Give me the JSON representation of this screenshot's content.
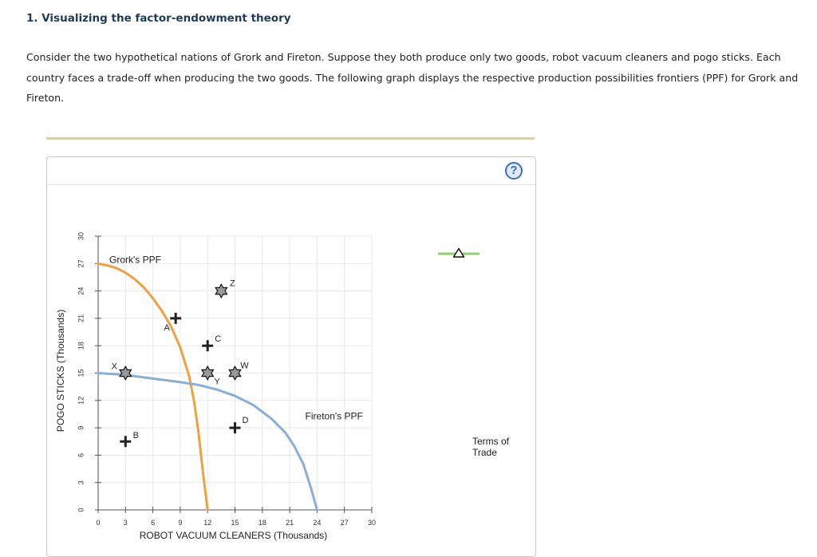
{
  "question": {
    "title": "1. Visualizing the factor-endowment theory",
    "body": "Consider the two hypothetical nations of Grork and Fireton. Suppose they both produce only two goods, robot vacuum cleaners and pogo sticks. Each country faces a trade-off when producing the two goods. The following graph displays the respective production possibilities frontiers (PPF) for Grork and Fireton."
  },
  "help": {
    "label": "?"
  },
  "legend": {
    "terms_of_trade": "Terms of Trade",
    "color": "#8fd16a"
  },
  "chart_data": {
    "type": "line",
    "xlabel": "ROBOT VACUUM CLEANERS (Thousands)",
    "ylabel": "POGO STICKS (Thousands)",
    "xlim": [
      0,
      30
    ],
    "ylim": [
      0,
      30
    ],
    "x_ticks": [
      "0",
      "3",
      "6",
      "9",
      "12",
      "15",
      "18",
      "21",
      "24",
      "27",
      "30"
    ],
    "y_ticks": [
      "0",
      "3",
      "6",
      "9",
      "12",
      "15",
      "18",
      "21",
      "24",
      "27",
      "30"
    ],
    "grid": true,
    "series": [
      {
        "name": "Grork's PPF",
        "color": "#f0a040",
        "points": [
          [
            0,
            27
          ],
          [
            1,
            26.8
          ],
          [
            2,
            26.5
          ],
          [
            3,
            26
          ],
          [
            4,
            25.3
          ],
          [
            5,
            24.4
          ],
          [
            6,
            23.2
          ],
          [
            7,
            21.8
          ],
          [
            8,
            20.1
          ],
          [
            9,
            17.8
          ],
          [
            10,
            14.6
          ],
          [
            10.5,
            12
          ],
          [
            11,
            8.5
          ],
          [
            11.5,
            4
          ],
          [
            12,
            0
          ]
        ]
      },
      {
        "name": "Fireton's PPF",
        "color": "#8aaed6",
        "points": [
          [
            0,
            15
          ],
          [
            3,
            14.8
          ],
          [
            6,
            14.4
          ],
          [
            9,
            14
          ],
          [
            11,
            13.7
          ],
          [
            13,
            13.2
          ],
          [
            15,
            12.5
          ],
          [
            17,
            11.5
          ],
          [
            19,
            10
          ],
          [
            20.5,
            8.5
          ],
          [
            21.5,
            7
          ],
          [
            22.5,
            5
          ],
          [
            23.3,
            2.5
          ],
          [
            24,
            0
          ]
        ]
      }
    ],
    "points": [
      {
        "label": "A",
        "x": 8.5,
        "y": 21,
        "marker": "plus"
      },
      {
        "label": "B",
        "x": 3,
        "y": 7.5,
        "marker": "plus"
      },
      {
        "label": "C",
        "x": 12,
        "y": 18,
        "marker": "plus"
      },
      {
        "label": "D",
        "x": 15,
        "y": 9,
        "marker": "plus"
      },
      {
        "label": "X",
        "x": 3,
        "y": 15,
        "marker": "star"
      },
      {
        "label": "Y",
        "x": 12,
        "y": 15,
        "marker": "star"
      },
      {
        "label": "W",
        "x": 15,
        "y": 15,
        "marker": "star"
      },
      {
        "label": "Z",
        "x": 13.5,
        "y": 24,
        "marker": "star"
      }
    ]
  }
}
